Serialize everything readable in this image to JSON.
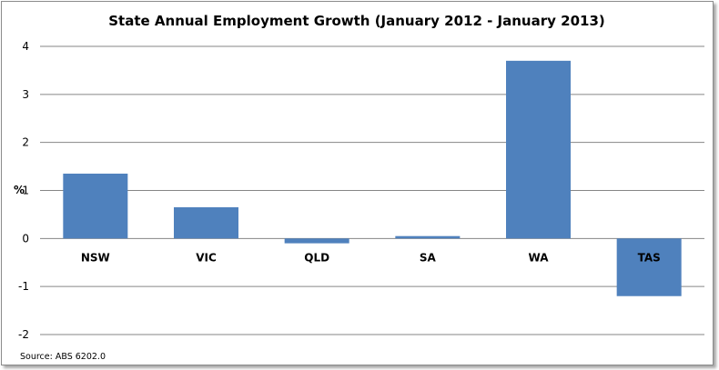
{
  "chart_data": {
    "type": "bar",
    "title": "State Annual Employment Growth (January 2012 - January 2013)",
    "ylabel": "%",
    "xlabel": "",
    "categories": [
      "NSW",
      "VIC",
      "QLD",
      "SA",
      "WA",
      "TAS"
    ],
    "values": [
      1.35,
      0.65,
      -0.1,
      0.05,
      3.7,
      -1.2
    ],
    "ylim": [
      -2,
      4
    ],
    "yticks": [
      "4",
      "3",
      "2",
      "1",
      "0",
      "-1",
      "-2"
    ],
    "grid": true,
    "bar_color": "#4f81bd",
    "source": "Source: ABS 6202.0"
  }
}
